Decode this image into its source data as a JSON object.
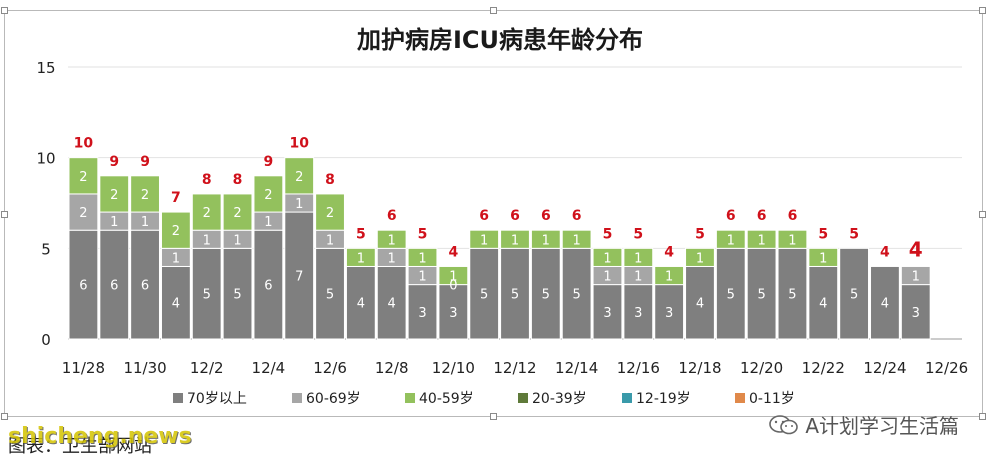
{
  "chart_data": {
    "type": "bar",
    "stacked": true,
    "title": "加护病房ICU病患年龄分布",
    "xlabel": "",
    "ylabel": "",
    "ylim": [
      0,
      15
    ],
    "yticks": [
      "0",
      "5",
      "10",
      "15"
    ],
    "grid": true,
    "legend_position": "bottom",
    "categories": [
      "11/28",
      "11/29",
      "11/30",
      "12/1",
      "12/2",
      "12/3",
      "12/4",
      "12/5",
      "12/6",
      "12/7",
      "12/8",
      "12/9",
      "12/10",
      "12/11",
      "12/12",
      "12/13",
      "12/14",
      "12/15",
      "12/16",
      "12/17",
      "12/18",
      "12/19",
      "12/20",
      "12/21",
      "12/22",
      "12/23",
      "12/24",
      "12/25",
      "12/26"
    ],
    "xtick_labels": [
      "11/28",
      "11/30",
      "12/2",
      "12/4",
      "12/6",
      "12/8",
      "12/10",
      "12/12",
      "12/14",
      "12/16",
      "12/18",
      "12/20",
      "12/22",
      "12/24",
      "12/26"
    ],
    "series": [
      {
        "name": "70岁以上",
        "color": "#7f7f7f",
        "values": [
          6,
          6,
          6,
          4,
          5,
          5,
          6,
          7,
          5,
          4,
          4,
          3,
          3,
          5,
          5,
          5,
          5,
          3,
          3,
          3,
          4,
          5,
          5,
          5,
          4,
          5,
          4,
          3,
          0
        ]
      },
      {
        "name": "60-69岁",
        "color": "#a6a6a6",
        "values": [
          2,
          1,
          1,
          1,
          1,
          1,
          1,
          1,
          1,
          0,
          1,
          1,
          0,
          0,
          0,
          0,
          0,
          1,
          1,
          0,
          0,
          0,
          0,
          0,
          0,
          0,
          0,
          1,
          0
        ]
      },
      {
        "name": "40-59岁",
        "color": "#93c15d",
        "values": [
          2,
          2,
          2,
          2,
          2,
          2,
          2,
          2,
          2,
          1,
          1,
          1,
          1,
          1,
          1,
          1,
          1,
          1,
          1,
          1,
          1,
          1,
          1,
          1,
          1,
          0,
          0,
          0,
          0
        ]
      },
      {
        "name": "20-39岁",
        "color": "#5f7a3a",
        "values": [
          0,
          0,
          0,
          0,
          0,
          0,
          0,
          0,
          0,
          0,
          0,
          0,
          0,
          0,
          0,
          0,
          0,
          0,
          0,
          0,
          0,
          0,
          0,
          0,
          0,
          0,
          0,
          0,
          0
        ]
      },
      {
        "name": "12-19岁",
        "color": "#3a9aaa",
        "values": [
          0,
          0,
          0,
          0,
          0,
          0,
          0,
          0,
          0,
          0,
          0,
          0,
          0,
          0,
          0,
          0,
          0,
          0,
          0,
          0,
          0,
          0,
          0,
          0,
          0,
          0,
          0,
          0,
          0
        ]
      },
      {
        "name": "0-11岁",
        "color": "#e0894a",
        "values": [
          0,
          0,
          0,
          0,
          0,
          0,
          0,
          0,
          0,
          0,
          0,
          0,
          0,
          0,
          0,
          0,
          0,
          0,
          0,
          0,
          0,
          0,
          0,
          0,
          0,
          0,
          0,
          0,
          0
        ]
      }
    ],
    "segment_labels": {
      "70岁以上": [
        "6",
        "6",
        "6",
        "4",
        "5",
        "5",
        "6",
        "7",
        "5",
        "4",
        "4",
        "3",
        "3",
        "5",
        "5",
        "5",
        "5",
        "3",
        "3",
        "3",
        "4",
        "5",
        "5",
        "5",
        "4",
        "5",
        "4",
        "3",
        ""
      ],
      "60-69岁": [
        "2",
        "1",
        "1",
        "1",
        "1",
        "1",
        "1",
        "1",
        "1",
        "",
        "1",
        "1",
        "0",
        "",
        "",
        "",
        "",
        "1",
        "1",
        "",
        "",
        "",
        "",
        "",
        "",
        "",
        "",
        "1",
        ""
      ],
      "40-59岁": [
        "2",
        "2",
        "2",
        "2",
        "2",
        "2",
        "2",
        "2",
        "2",
        "1",
        "1",
        "1",
        "1",
        "1",
        "1",
        "1",
        "1",
        "1",
        "1",
        "1",
        "1",
        "1",
        "1",
        "1",
        "1",
        "",
        "",
        "",
        ""
      ]
    },
    "total_labels": [
      "10",
      "9",
      "9",
      "7",
      "8",
      "8",
      "9",
      "10",
      "8",
      "5",
      "6",
      "5",
      "4",
      "6",
      "6",
      "6",
      "6",
      "5",
      "5",
      "4",
      "5",
      "6",
      "6",
      "6",
      "5",
      "5",
      "4",
      "4",
      ""
    ],
    "total_color": "#d0111b"
  },
  "footer": {
    "source": "图表：卫生部网站",
    "watermark": "shicheng.news",
    "account": "A计划学习生活篇",
    "account_icon": "wechat-icon"
  }
}
